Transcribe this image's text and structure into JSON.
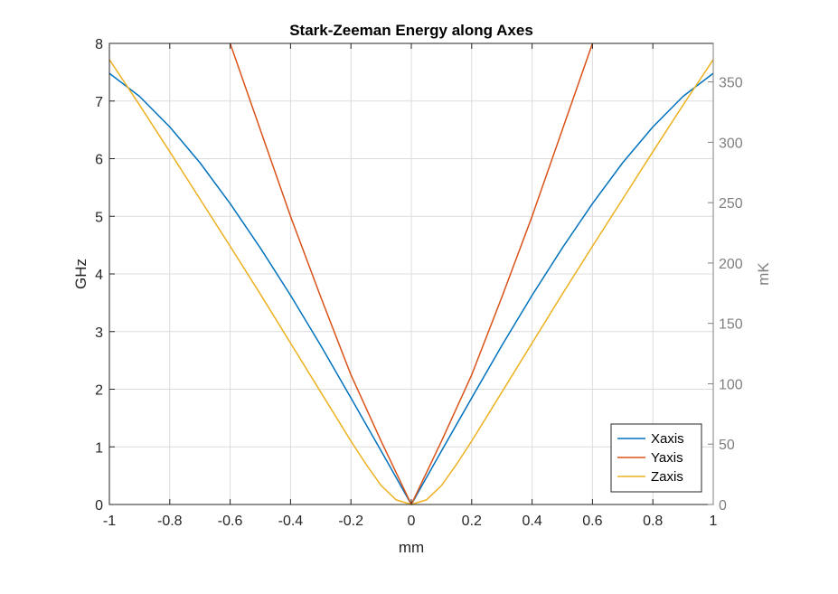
{
  "chart_data": {
    "type": "line",
    "title": "Stark-Zeeman Energy along Axes",
    "xlabel": "mm",
    "ylabel_left": "GHz",
    "ylabel_right": "mK",
    "xlim": [
      -1,
      1
    ],
    "ylim_left": [
      0,
      8
    ],
    "ylim_right": [
      0,
      381.9
    ],
    "xticks": [
      -1,
      -0.8,
      -0.6,
      -0.4,
      -0.2,
      0,
      0.2,
      0.4,
      0.6,
      0.8,
      1
    ],
    "xtick_labels": [
      "-1",
      "-0.8",
      "-0.6",
      "-0.4",
      "-0.2",
      "0",
      "0.2",
      "0.4",
      "0.6",
      "0.8",
      "1"
    ],
    "yticks_left": [
      0,
      1,
      2,
      3,
      4,
      5,
      6,
      7,
      8
    ],
    "ytick_labels_left": [
      "0",
      "1",
      "2",
      "3",
      "4",
      "5",
      "6",
      "7",
      "8"
    ],
    "yticks_right": [
      0,
      50,
      100,
      150,
      200,
      250,
      300,
      350
    ],
    "ytick_labels_right": [
      "0",
      "50",
      "100",
      "150",
      "200",
      "250",
      "300",
      "350"
    ],
    "grid": true,
    "legend_position": "bottom-right",
    "series": [
      {
        "name": "Xaxis",
        "color": "#0072BD",
        "x": [
          -1,
          -0.9,
          -0.8,
          -0.7,
          -0.6,
          -0.5,
          -0.4,
          -0.3,
          -0.2,
          -0.1,
          0,
          0.1,
          0.2,
          0.3,
          0.4,
          0.5,
          0.6,
          0.7,
          0.8,
          0.9,
          1
        ],
        "y": [
          7.48,
          7.08,
          6.55,
          5.93,
          5.22,
          4.45,
          3.63,
          2.76,
          1.85,
          0.93,
          0,
          0.93,
          1.85,
          2.76,
          3.63,
          4.45,
          5.22,
          5.93,
          6.55,
          7.08,
          7.48
        ]
      },
      {
        "name": "Yaxis",
        "color": "#D95319",
        "x": [
          -0.6,
          -0.5,
          -0.4,
          -0.3,
          -0.2,
          -0.1,
          0,
          0.1,
          0.2,
          0.3,
          0.4,
          0.5,
          0.6
        ],
        "y": [
          8.0,
          6.5,
          5.0,
          3.6,
          2.25,
          1.1,
          0,
          1.1,
          2.25,
          3.6,
          5.0,
          6.5,
          8.0
        ]
      },
      {
        "name": "Zaxis",
        "color": "#EDB120",
        "x": [
          -1,
          -0.9,
          -0.8,
          -0.7,
          -0.6,
          -0.5,
          -0.4,
          -0.3,
          -0.2,
          -0.15,
          -0.1,
          -0.05,
          0,
          0.05,
          0.1,
          0.15,
          0.2,
          0.3,
          0.4,
          0.5,
          0.6,
          0.7,
          0.8,
          0.9,
          1
        ],
        "y": [
          7.72,
          6.93,
          6.12,
          5.3,
          4.48,
          3.65,
          2.8,
          1.95,
          1.1,
          0.7,
          0.33,
          0.08,
          0,
          0.08,
          0.33,
          0.7,
          1.1,
          1.95,
          2.8,
          3.65,
          4.48,
          5.3,
          6.12,
          6.93,
          7.72
        ]
      }
    ]
  }
}
